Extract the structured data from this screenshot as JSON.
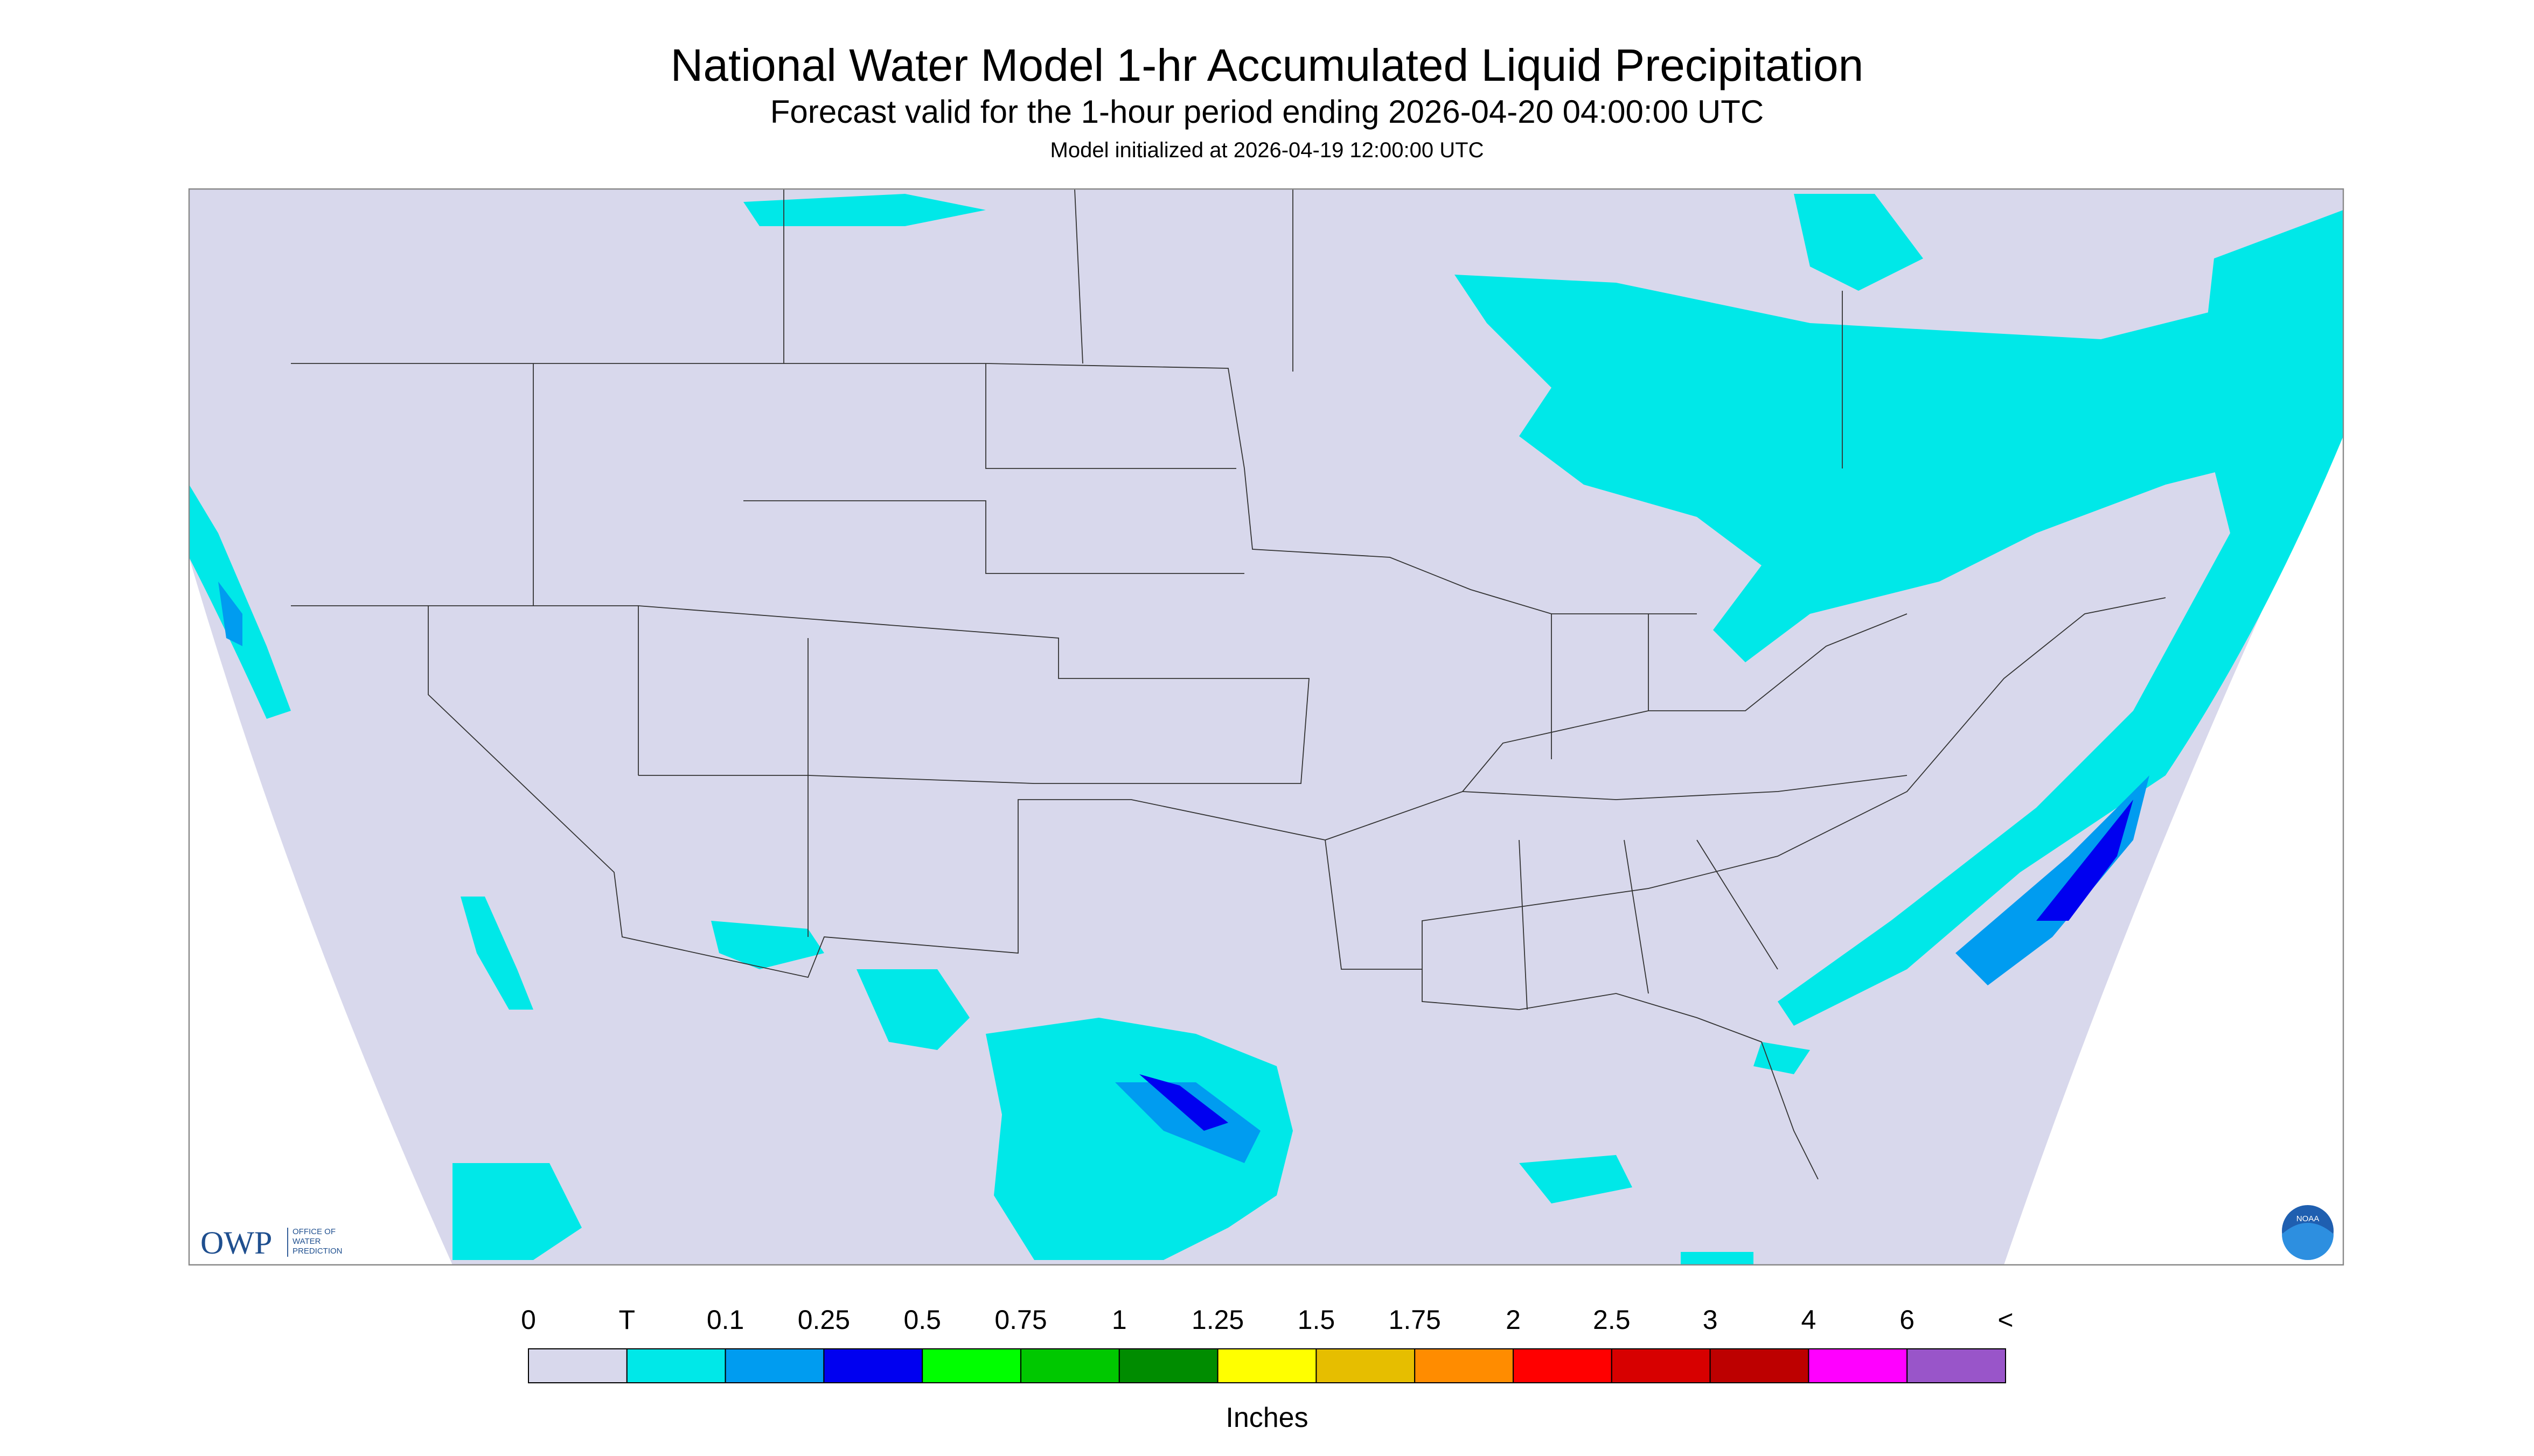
{
  "header": {
    "title": "National Water Model 1-hr Accumulated Liquid Precipitation",
    "subtitle": "Forecast valid for the 1-hour period ending 2026-04-20 04:00:00 UTC",
    "init": "Model initialized at 2026-04-19 12:00:00 UTC"
  },
  "logos": {
    "owp": "OWP",
    "owp_lines": [
      "OFFICE OF",
      "WATER",
      "PREDICTION"
    ],
    "noaa": "NOAA"
  },
  "legend": {
    "labels": [
      "0",
      "T",
      "0.1",
      "0.25",
      "0.5",
      "0.75",
      "1",
      "1.25",
      "1.5",
      "1.75",
      "2",
      "2.5",
      "3",
      "4",
      "6",
      "<"
    ],
    "colors": [
      "#d8d8ec",
      "#00e8e8",
      "#009cf0",
      "#0000f0",
      "#00ff00",
      "#00c800",
      "#008c00",
      "#ffff00",
      "#e6be00",
      "#ff8c00",
      "#ff0000",
      "#d70000",
      "#bd0000",
      "#ff00ff",
      "#9955c9"
    ],
    "unit": "Inches"
  }
}
